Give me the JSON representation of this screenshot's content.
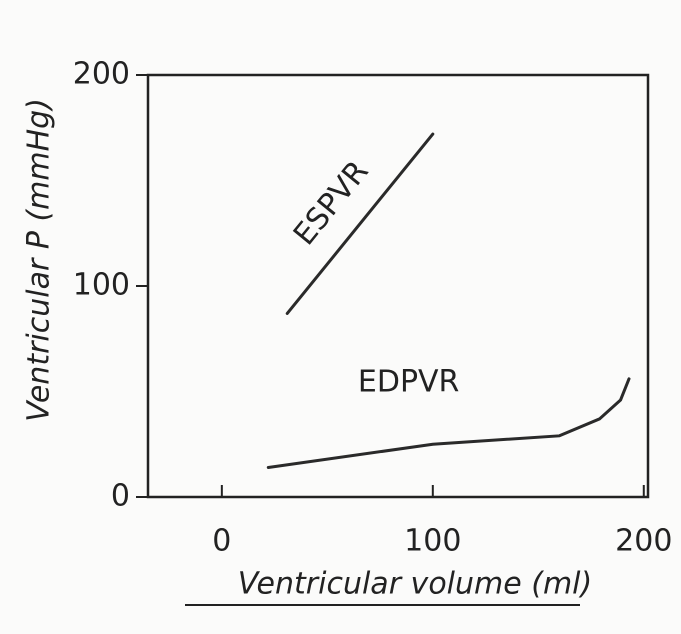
{
  "chart_data": {
    "type": "line",
    "x_label": "Ventricular volume (ml)",
    "y_label": "Ventricular P (mmHg)",
    "xlim": [
      -35,
      202
    ],
    "xticks": [
      0,
      100,
      200
    ],
    "ylim": [
      0,
      200
    ],
    "yticks": [
      0,
      100,
      200
    ],
    "series": [
      {
        "name": "ESPVR",
        "color": "#2a2a2a",
        "x": [
          31,
          100
        ],
        "values": [
          87,
          172
        ]
      },
      {
        "name": "EDPVR",
        "color": "#2a2a2a",
        "x": [
          22,
          100,
          160,
          179,
          189,
          193
        ],
        "values": [
          14,
          25,
          29,
          37,
          46,
          56
        ]
      }
    ]
  }
}
